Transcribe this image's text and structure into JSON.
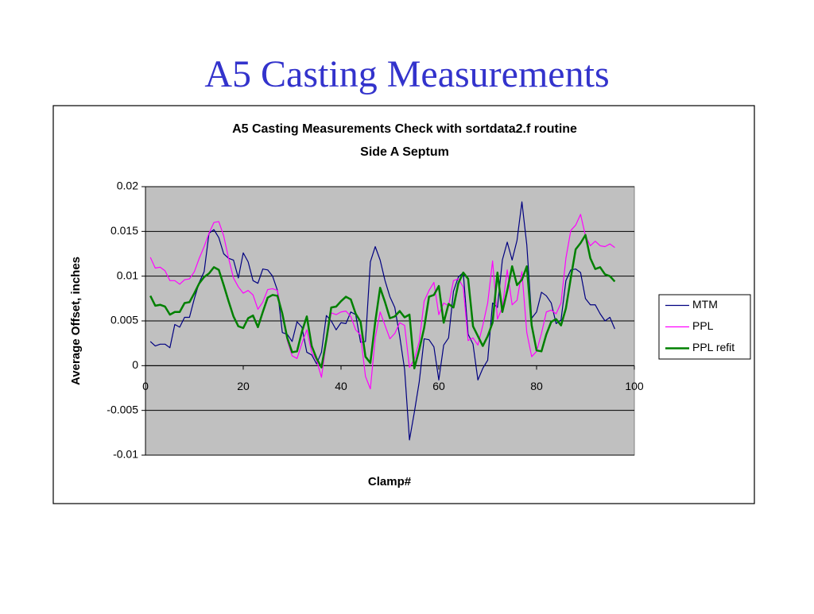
{
  "slide_title": "A5 Casting Measurements",
  "chart_data": {
    "type": "line",
    "title": "A5 Casting Measurements Check with sortdata2.f routine",
    "subtitle": "Side A Septum",
    "x_label": "Clamp#",
    "y_label": "Average Offset, inches",
    "x": [
      1,
      2,
      3,
      4,
      5,
      6,
      7,
      8,
      9,
      10,
      11,
      12,
      13,
      14,
      15,
      16,
      17,
      18,
      19,
      20,
      21,
      22,
      23,
      24,
      25,
      26,
      27,
      28,
      29,
      30,
      31,
      32,
      33,
      34,
      35,
      36,
      37,
      38,
      39,
      40,
      41,
      42,
      43,
      44,
      45,
      46,
      47,
      48,
      49,
      50,
      51,
      52,
      53,
      54,
      55,
      56,
      57,
      58,
      59,
      60,
      61,
      62,
      63,
      64,
      65,
      66,
      67,
      68,
      69,
      70,
      71,
      72,
      73,
      74,
      75,
      76,
      77,
      78,
      79,
      80,
      81,
      82,
      83,
      84,
      85,
      86,
      87,
      88,
      89,
      90,
      91,
      92,
      93,
      94,
      95,
      96
    ],
    "series": [
      {
        "name": "MTM",
        "color": "#000080",
        "width": 1.2,
        "values": [
          0.0027,
          0.0022,
          0.0024,
          0.0024,
          0.002,
          0.0046,
          0.0043,
          0.0054,
          0.0054,
          0.0075,
          0.0093,
          0.0105,
          0.0148,
          0.0152,
          0.0143,
          0.0125,
          0.012,
          0.0118,
          0.0098,
          0.0126,
          0.0116,
          0.0095,
          0.0092,
          0.0108,
          0.0107,
          0.01,
          0.0084,
          0.0037,
          0.0035,
          0.0027,
          0.0049,
          0.0043,
          0.0015,
          0.0012,
          0.0002,
          0.0015,
          0.0056,
          0.005,
          0.004,
          0.0048,
          0.0047,
          0.006,
          0.0057,
          0.0026,
          0.0027,
          0.0116,
          0.0133,
          0.0118,
          0.0095,
          0.0077,
          0.0065,
          0.0033,
          -0.0004,
          -0.0083,
          -0.0052,
          -0.0018,
          0.003,
          0.0029,
          0.0021,
          -0.0016,
          0.0023,
          0.0031,
          0.0083,
          0.0099,
          0.0104,
          0.0035,
          0.0024,
          -0.0016,
          -0.0003,
          0.0006,
          0.007,
          0.0065,
          0.0118,
          0.0138,
          0.0118,
          0.014,
          0.0183,
          0.0135,
          0.0053,
          0.006,
          0.0082,
          0.0078,
          0.007,
          0.0047,
          0.0051,
          0.0095,
          0.0107,
          0.0108,
          0.0104,
          0.0075,
          0.0068,
          0.0068,
          0.0058,
          0.005,
          0.0054,
          0.0041
        ]
      },
      {
        "name": "PPL",
        "color": "#ff00ff",
        "width": 1.2,
        "values": [
          0.0121,
          0.0109,
          0.011,
          0.0106,
          0.0095,
          0.0095,
          0.0091,
          0.0096,
          0.0097,
          0.0105,
          0.012,
          0.0133,
          0.0148,
          0.016,
          0.0161,
          0.0145,
          0.012,
          0.0098,
          0.0088,
          0.0081,
          0.0084,
          0.0079,
          0.0063,
          0.0071,
          0.0085,
          0.0086,
          0.0084,
          0.0055,
          0.0028,
          0.0011,
          0.0008,
          0.0025,
          0.004,
          0.0015,
          0.0006,
          -0.0013,
          0.0026,
          0.0059,
          0.0057,
          0.006,
          0.0061,
          0.0055,
          0.004,
          0.0034,
          -0.0012,
          -0.0026,
          0.0031,
          0.006,
          0.0045,
          0.003,
          0.0036,
          0.0048,
          0.0045,
          -0.0002,
          0.0007,
          0.0027,
          0.0072,
          0.0084,
          0.0093,
          0.0057,
          0.007,
          0.0067,
          0.0095,
          0.0097,
          0.0088,
          0.0028,
          0.0031,
          0.0023,
          0.0045,
          0.007,
          0.0117,
          0.0052,
          0.0065,
          0.0107,
          0.0068,
          0.0073,
          0.0105,
          0.0037,
          0.001,
          0.0016,
          0.0036,
          0.006,
          0.0062,
          0.0058,
          0.007,
          0.012,
          0.0151,
          0.0157,
          0.0169,
          0.0145,
          0.0134,
          0.0139,
          0.0134,
          0.0133,
          0.0136,
          0.0132
        ]
      },
      {
        "name": "PPL refit",
        "color": "#008000",
        "width": 2.5,
        "values": [
          0.0078,
          0.0067,
          0.0068,
          0.0066,
          0.0057,
          0.006,
          0.006,
          0.007,
          0.0071,
          0.0081,
          0.0092,
          0.0099,
          0.0103,
          0.011,
          0.0107,
          0.009,
          0.0072,
          0.0055,
          0.0044,
          0.0042,
          0.0053,
          0.0056,
          0.0043,
          0.006,
          0.0076,
          0.0079,
          0.0078,
          0.0058,
          0.0031,
          0.0015,
          0.0016,
          0.0038,
          0.0055,
          0.0022,
          0.0008,
          -0.0002,
          0.0029,
          0.0065,
          0.0066,
          0.0072,
          0.0077,
          0.0074,
          0.0058,
          0.0049,
          0.001,
          0.0003,
          0.0049,
          0.0087,
          0.0071,
          0.0053,
          0.0055,
          0.0061,
          0.0054,
          0.0057,
          -0.0003,
          0.0018,
          0.0042,
          0.0077,
          0.0079,
          0.0089,
          0.0048,
          0.0069,
          0.0065,
          0.0092,
          0.0104,
          0.0097,
          0.0044,
          0.0033,
          0.0022,
          0.0033,
          0.0048,
          0.0104,
          0.006,
          0.0084,
          0.0111,
          0.009,
          0.0096,
          0.0111,
          0.0045,
          0.0017,
          0.0016,
          0.0035,
          0.0049,
          0.0052,
          0.0045,
          0.0064,
          0.0098,
          0.013,
          0.0137,
          0.0146,
          0.012,
          0.0108,
          0.011,
          0.0102,
          0.01,
          0.0094
        ]
      }
    ],
    "xlim": [
      0,
      100
    ],
    "xticks": [
      0,
      20,
      40,
      60,
      80,
      100
    ],
    "ylim": [
      -0.01,
      0.02
    ],
    "yticks": [
      -0.01,
      -0.005,
      0,
      0.005,
      0.01,
      0.015,
      0.02
    ],
    "grid": true,
    "plot_background": "#c0c0c0",
    "legend": "right"
  }
}
